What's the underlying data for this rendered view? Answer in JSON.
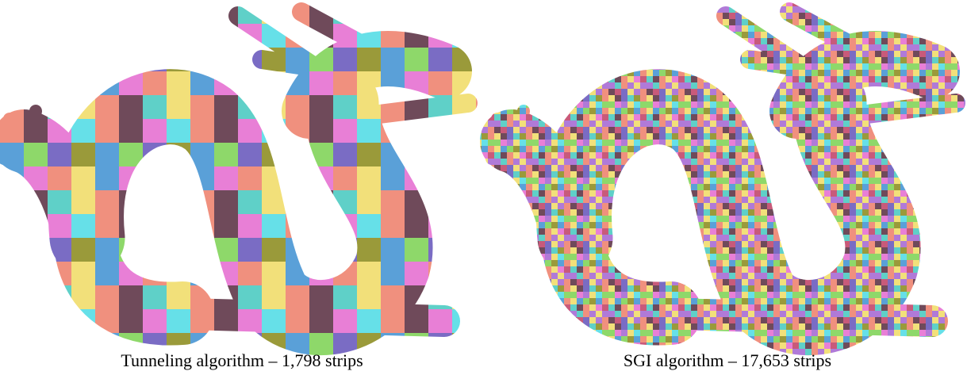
{
  "figure": {
    "panels": [
      {
        "caption": "Tunneling algorithm – 1,798 strips"
      },
      {
        "caption": "SGI algorithm – 17,653 strips"
      }
    ]
  }
}
